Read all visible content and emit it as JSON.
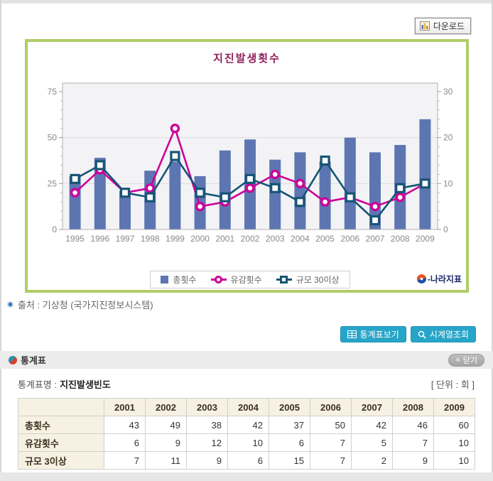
{
  "page": {
    "download_label": "다운로드",
    "source_text": "출처 : 기상청 (국가지진정보시스템)",
    "buttons": {
      "stats_table": "통계표보기",
      "timeseries": "시계열조회"
    },
    "stats_section": {
      "title": "통계표",
      "close_x": "×",
      "close_label": "닫기"
    },
    "table_meta": {
      "name_label": "통계표명 :",
      "name_value": "지진발생빈도",
      "unit": "[ 단위 : 회 ]"
    },
    "logo_text": "-나라지표"
  },
  "chart_data": {
    "type": "bar",
    "title": "지진발생횟수",
    "categories": [
      "1995",
      "1996",
      "1997",
      "1998",
      "1999",
      "2000",
      "2001",
      "2002",
      "2003",
      "2004",
      "2005",
      "2006",
      "2007",
      "2008",
      "2009"
    ],
    "series": [
      {
        "name": "총횟수",
        "type": "bar",
        "axis": "left",
        "color": "#5d76b2",
        "values": [
          29,
          39,
          21,
          32,
          37,
          29,
          43,
          49,
          38,
          42,
          37,
          50,
          42,
          46,
          60
        ]
      },
      {
        "name": "유감횟수",
        "type": "line",
        "marker": "circle",
        "axis": "right",
        "color": "#cc0099",
        "values": [
          8,
          13,
          8,
          9,
          22,
          5,
          6,
          9,
          12,
          10,
          6,
          7,
          5,
          7,
          10
        ]
      },
      {
        "name": "규모 30이상",
        "type": "line",
        "marker": "square",
        "axis": "right",
        "color": "#155575",
        "values": [
          11,
          14,
          8,
          7,
          16,
          8,
          7,
          11,
          9,
          6,
          15,
          7,
          2,
          9,
          10
        ]
      }
    ],
    "left_axis": {
      "min": 0,
      "max": 75,
      "ticks": [
        0,
        25,
        50,
        75
      ]
    },
    "right_axis": {
      "min": 0,
      "max": 30,
      "ticks": [
        0,
        10,
        20,
        30
      ]
    },
    "grid": "horizontal",
    "legend_position": "bottom"
  },
  "table": {
    "columns": [
      "2001",
      "2002",
      "2003",
      "2004",
      "2005",
      "2006",
      "2007",
      "2008",
      "2009"
    ],
    "rows": [
      {
        "label": "총횟수",
        "values": [
          43,
          49,
          38,
          42,
          37,
          50,
          42,
          46,
          60
        ]
      },
      {
        "label": "유감횟수",
        "values": [
          6,
          9,
          12,
          10,
          6,
          7,
          5,
          7,
          10
        ]
      },
      {
        "label": "규모 3이상",
        "values": [
          7,
          11,
          9,
          6,
          15,
          7,
          2,
          9,
          10
        ]
      }
    ]
  },
  "colors": {
    "chart_border": "#b0cd66",
    "title": "#8e1f5b",
    "bar": "#5d76b2",
    "felt_line": "#cc0099",
    "magnitude_line": "#155575",
    "action_button": "#27a5c9"
  }
}
